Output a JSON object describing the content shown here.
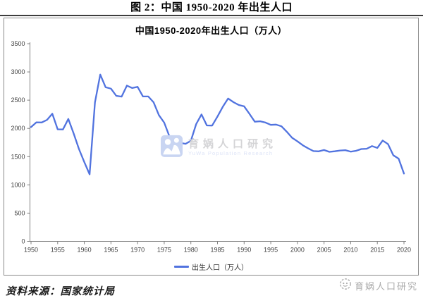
{
  "page": {
    "figure_title": "图 2：中国 1950-2020 年出生人口",
    "source_note": "资料来源：国家统计局"
  },
  "watermarks": {
    "center": {
      "text": "育娲人口研究",
      "subtext": "YuWa Population Research"
    },
    "bottom_right": {
      "text": "育娲人口研究"
    }
  },
  "chart_data": {
    "type": "line",
    "title": "中国1950-2020年出生人口（万人）",
    "legend": [
      "出生人口（万人）"
    ],
    "legend_position": "bottom",
    "grid": false,
    "line_color": "#5173DF",
    "axis_color": "#808080",
    "label_color": "#404040",
    "ylim": [
      0,
      3500
    ],
    "yticks": [
      0,
      500,
      1000,
      1500,
      2000,
      2500,
      3000,
      3500
    ],
    "xticks": [
      1950,
      1955,
      1960,
      1965,
      1970,
      1975,
      1980,
      1985,
      1990,
      1995,
      2000,
      2005,
      2010,
      2015,
      2020
    ],
    "x": [
      1950,
      1951,
      1952,
      1953,
      1954,
      1955,
      1956,
      1957,
      1958,
      1959,
      1960,
      1961,
      1962,
      1963,
      1964,
      1965,
      1966,
      1967,
      1968,
      1969,
      1970,
      1971,
      1972,
      1973,
      1974,
      1975,
      1976,
      1977,
      1978,
      1979,
      1980,
      1981,
      1982,
      1983,
      1984,
      1985,
      1986,
      1987,
      1988,
      1989,
      1990,
      1991,
      1992,
      1993,
      1994,
      1995,
      1996,
      1997,
      1998,
      1999,
      2000,
      2001,
      2002,
      2003,
      2004,
      2005,
      2006,
      2007,
      2008,
      2009,
      2010,
      2011,
      2012,
      2013,
      2014,
      2015,
      2016,
      2017,
      2018,
      2019,
      2020
    ],
    "series": [
      {
        "name": "出生人口（万人）",
        "values": [
          2023,
          2107,
          2105,
          2151,
          2260,
          1984,
          1982,
          2167,
          1909,
          1635,
          1402,
          1187,
          2460,
          2954,
          2729,
          2704,
          2577,
          2563,
          2757,
          2715,
          2736,
          2567,
          2566,
          2463,
          2235,
          2102,
          1853,
          1786,
          1745,
          1727,
          1779,
          2078,
          2247,
          2052,
          2050,
          2211,
          2384,
          2529,
          2464,
          2414,
          2391,
          2258,
          2119,
          2126,
          2104,
          2063,
          2067,
          2038,
          1942,
          1834,
          1771,
          1702,
          1647,
          1599,
          1593,
          1617,
          1585,
          1595,
          1608,
          1615,
          1588,
          1604,
          1635,
          1640,
          1687,
          1655,
          1786,
          1723,
          1523,
          1465,
          1200
        ]
      }
    ]
  }
}
